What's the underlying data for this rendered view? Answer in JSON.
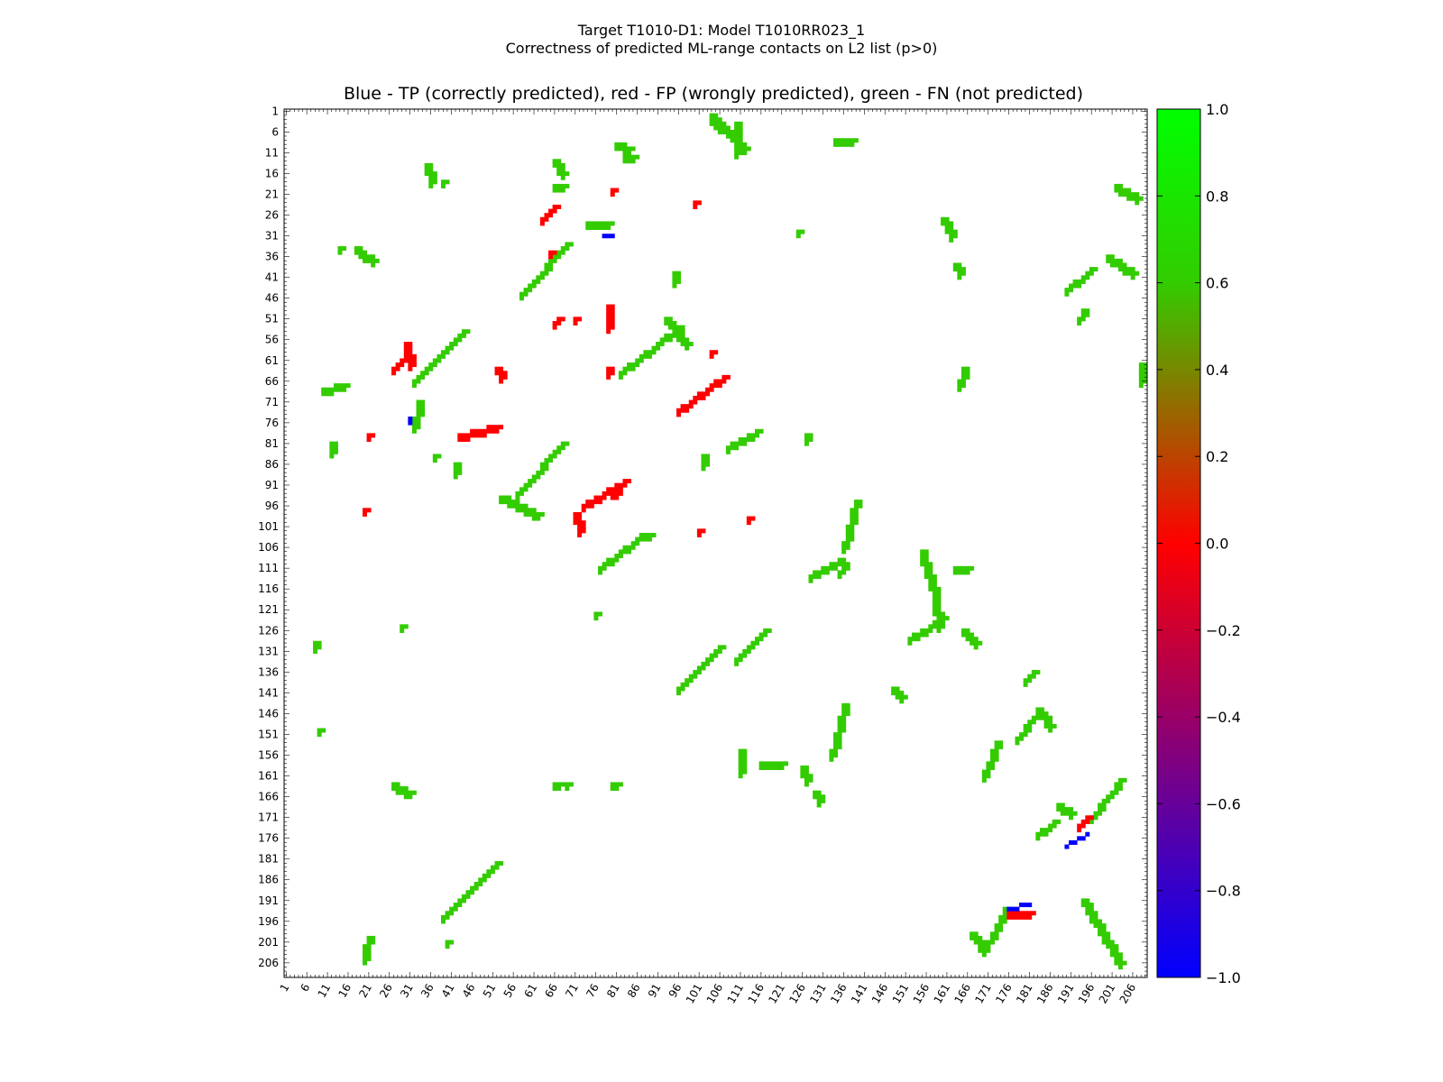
{
  "suptitle": {
    "line1": "Target T1010-D1: Model T1010RR023_1",
    "line2": "Correctness of predicted ML-range contacts on L2 list (p>0)"
  },
  "chart_data": {
    "type": "heatmap",
    "title": "Blue - TP (correctly predicted), red - FP (wrongly predicted), green - FN (not predicted)",
    "xlabel": "",
    "ylabel": "",
    "xlim": [
      1,
      209
    ],
    "ylim": [
      1,
      209
    ],
    "y_inverted": true,
    "grid": false,
    "tick_labels": [
      "1",
      "6",
      "11",
      "16",
      "21",
      "26",
      "31",
      "36",
      "41",
      "46",
      "51",
      "56",
      "61",
      "66",
      "71",
      "76",
      "81",
      "86",
      "91",
      "96",
      "101",
      "106",
      "111",
      "116",
      "121",
      "126",
      "131",
      "136",
      "141",
      "146",
      "151",
      "156",
      "161",
      "166",
      "171",
      "176",
      "181",
      "186",
      "191",
      "196",
      "201",
      "206"
    ],
    "colorbar": {
      "min": -1.0,
      "max": 1.0,
      "ticks": [
        "1.0",
        "0.8",
        "0.6",
        "0.4",
        "0.2",
        "0.0",
        "−0.2",
        "−0.4",
        "−0.6",
        "−0.8",
        "−1.0"
      ],
      "colors": [
        "#00ff00",
        "#ff0000",
        "#0000ff"
      ]
    },
    "legend": [
      {
        "value": -1,
        "meaning": "TP (correctly predicted)",
        "color": "#0000ff"
      },
      {
        "value": 0,
        "meaning": "FP (wrongly predicted)",
        "color": "#ff0000"
      },
      {
        "value": 0.8,
        "meaning": "FN (not predicted)",
        "color": "#33cc00"
      }
    ],
    "segments_fn": [
      [
        104,
        2,
        112,
        10
      ],
      [
        8,
        129,
        8,
        130
      ],
      [
        9,
        150,
        9,
        150
      ],
      [
        18,
        34,
        22,
        37
      ],
      [
        14,
        34,
        14,
        34
      ],
      [
        15,
        67,
        10,
        68
      ],
      [
        12,
        81,
        12,
        83
      ],
      [
        21,
        200,
        20,
        203
      ],
      [
        20,
        204,
        20,
        205
      ],
      [
        27,
        163,
        31,
        165
      ],
      [
        29,
        125,
        29,
        125
      ],
      [
        32,
        66,
        44,
        54
      ],
      [
        32,
        77,
        33,
        71
      ],
      [
        35,
        14,
        36,
        18
      ],
      [
        39,
        18,
        39,
        18
      ],
      [
        37,
        84,
        37,
        84
      ],
      [
        39,
        195,
        52,
        182
      ],
      [
        40,
        201,
        40,
        201
      ],
      [
        42,
        86,
        42,
        88
      ],
      [
        58,
        45,
        69,
        33
      ],
      [
        57,
        93,
        68,
        81
      ],
      [
        53,
        94,
        62,
        98
      ],
      [
        66,
        13,
        68,
        16
      ],
      [
        66,
        19,
        68,
        19
      ],
      [
        66,
        163,
        67,
        163
      ],
      [
        69,
        163,
        69,
        163
      ],
      [
        74,
        28,
        79,
        28
      ],
      [
        76,
        122,
        76,
        122
      ],
      [
        77,
        111,
        86,
        104
      ],
      [
        80,
        163,
        81,
        163
      ],
      [
        82,
        64,
        96,
        53
      ],
      [
        81,
        9,
        84,
        10
      ],
      [
        83,
        12,
        85,
        12
      ],
      [
        89,
        103,
        87,
        103
      ],
      [
        93,
        51,
        98,
        57
      ],
      [
        96,
        140,
        106,
        130
      ],
      [
        95,
        40,
        95,
        42
      ],
      [
        102,
        86,
        102,
        84
      ],
      [
        104,
        3,
        108,
        6
      ],
      [
        110,
        4,
        110,
        10
      ],
      [
        111,
        10,
        110,
        11
      ],
      [
        108,
        82,
        115,
        78
      ],
      [
        110,
        133,
        117,
        126
      ],
      [
        111,
        155,
        111,
        160
      ],
      [
        116,
        158,
        121,
        158
      ],
      [
        126,
        159,
        127,
        162
      ],
      [
        127,
        79,
        127,
        80
      ],
      [
        125,
        30,
        125,
        30
      ],
      [
        128,
        113,
        135,
        109
      ],
      [
        129,
        165,
        130,
        167
      ],
      [
        136,
        144,
        133,
        156
      ],
      [
        135,
        112,
        136,
        110
      ],
      [
        134,
        8,
        138,
        8
      ],
      [
        136,
        106,
        139,
        95
      ],
      [
        148,
        140,
        150,
        142
      ],
      [
        152,
        128,
        160,
        123
      ],
      [
        155,
        107,
        156,
        112
      ],
      [
        157,
        113,
        159,
        125
      ],
      [
        160,
        27,
        162,
        31
      ],
      [
        163,
        38,
        164,
        40
      ],
      [
        165,
        63,
        164,
        67
      ],
      [
        165,
        126,
        168,
        129
      ],
      [
        163,
        111,
        166,
        111
      ],
      [
        170,
        161,
        173,
        153
      ],
      [
        175,
        193,
        171,
        201
      ],
      [
        167,
        199,
        170,
        203
      ],
      [
        182,
        147,
        178,
        152
      ],
      [
        180,
        138,
        182,
        136
      ],
      [
        183,
        145,
        186,
        149
      ],
      [
        188,
        168,
        191,
        170
      ],
      [
        187,
        172,
        183,
        175
      ],
      [
        196,
        171,
        200,
        166
      ],
      [
        200,
        166,
        203,
        162
      ],
      [
        194,
        191,
        203,
        206
      ],
      [
        200,
        36,
        206,
        40
      ],
      [
        190,
        44,
        196,
        39
      ],
      [
        193,
        51,
        194,
        49
      ],
      [
        202,
        19,
        207,
        22
      ],
      [
        208,
        62,
        208,
        66
      ]
    ],
    "segments_fp": [
      [
        27,
        63,
        29,
        61
      ],
      [
        30,
        57,
        31,
        62
      ],
      [
        43,
        79,
        52,
        77
      ],
      [
        52,
        63,
        53,
        65
      ],
      [
        51,
        77,
        52,
        77
      ],
      [
        63,
        27,
        66,
        24
      ],
      [
        65,
        35,
        65,
        35
      ],
      [
        66,
        52,
        67,
        51
      ],
      [
        71,
        51,
        71,
        51
      ],
      [
        73,
        96,
        83,
        90
      ],
      [
        71,
        98,
        72,
        102
      ],
      [
        79,
        48,
        79,
        53
      ],
      [
        80,
        20,
        80,
        20
      ],
      [
        79,
        63,
        79,
        64
      ],
      [
        81,
        93,
        80,
        93
      ],
      [
        96,
        73,
        107,
        65
      ],
      [
        100,
        23,
        100,
        23
      ],
      [
        101,
        102,
        101,
        102
      ],
      [
        104,
        59,
        104,
        59
      ],
      [
        113,
        99,
        113,
        99
      ],
      [
        176,
        194,
        181,
        194
      ],
      [
        193,
        173,
        195,
        171
      ],
      [
        21,
        79,
        21,
        79
      ],
      [
        20,
        97,
        20,
        97
      ]
    ],
    "segments_tp": [
      [
        31,
        75,
        31,
        76
      ],
      [
        78,
        31,
        80,
        31
      ],
      [
        176,
        193,
        181,
        192
      ],
      [
        190,
        178,
        195,
        175
      ]
    ]
  }
}
